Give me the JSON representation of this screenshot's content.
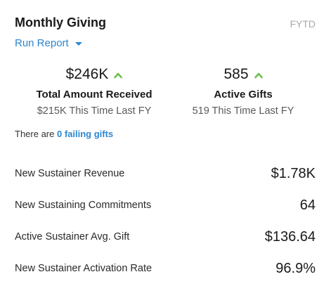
{
  "header": {
    "title": "Monthly Giving",
    "period": "FYTD",
    "run_report_label": "Run Report"
  },
  "stats": [
    {
      "value": "$246K",
      "label": "Total Amount Received",
      "compare": "$215K This Time Last FY",
      "trend": "up"
    },
    {
      "value": "585",
      "label": "Active Gifts",
      "compare": "519 This Time Last FY",
      "trend": "up"
    }
  ],
  "failing": {
    "prefix": "There are ",
    "link": "0 failing gifts"
  },
  "metrics": [
    {
      "label": "New Sustainer Revenue",
      "value": "$1.78K"
    },
    {
      "label": "New Sustaining Commitments",
      "value": "64"
    },
    {
      "label": "Active Sustainer Avg. Gift",
      "value": "$136.64"
    },
    {
      "label": "New Sustainer Activation Rate",
      "value": "96.9%"
    }
  ],
  "colors": {
    "accent": "#2c86d0",
    "trend_up": "#6cc04a",
    "muted": "#a9a9a9"
  }
}
